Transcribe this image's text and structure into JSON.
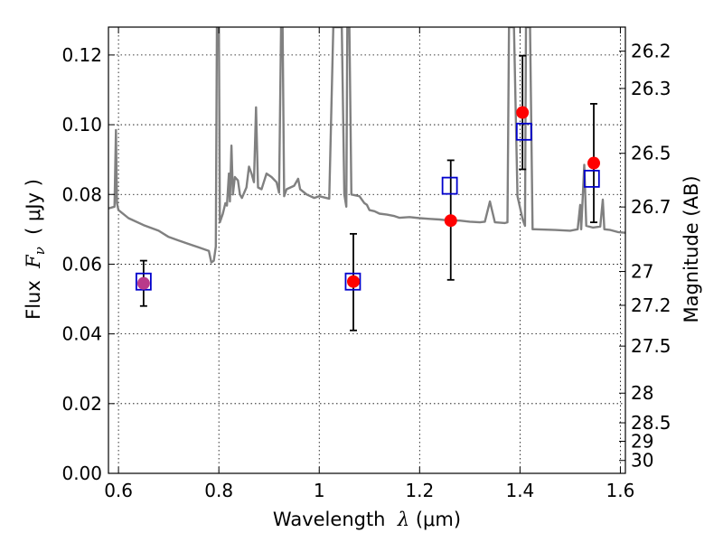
{
  "chart_data": {
    "type": "line",
    "xlabel": {
      "prefix": "Wavelength  ",
      "symbol": "λ",
      "units": " (μm)"
    },
    "ylabel": {
      "prefix": "Flux  ",
      "symbol": "F",
      "subscript": "ν",
      "units": "  ( μJy )"
    },
    "y2label": "Magnitude (AB)",
    "xlim": [
      0.58,
      1.61
    ],
    "ylim": [
      0.0,
      0.128
    ],
    "grid": true,
    "x_ticks": [
      0.6,
      0.8,
      1.0,
      1.2,
      1.4,
      1.6
    ],
    "x_tick_labels": [
      "0.6",
      "0.8",
      "1",
      "1.2",
      "1.4",
      "1.6"
    ],
    "y_ticks": [
      0.0,
      0.02,
      0.04,
      0.06,
      0.08,
      0.1,
      0.12
    ],
    "y_tick_labels": [
      "0.00",
      "0.02",
      "0.04",
      "0.06",
      "0.08",
      "0.10",
      "0.12"
    ],
    "magnitude_ticks": [
      {
        "label": "26.2",
        "flux": 0.1211
      },
      {
        "label": "26.3",
        "flux": 0.1104
      },
      {
        "label": "26.5",
        "flux": 0.0918
      },
      {
        "label": "26.7",
        "flux": 0.0764
      },
      {
        "label": "27",
        "flux": 0.0579
      },
      {
        "label": "27.2",
        "flux": 0.0482
      },
      {
        "label": "27.5",
        "flux": 0.0365
      },
      {
        "label": "28",
        "flux": 0.023
      },
      {
        "label": "28.5",
        "flux": 0.0145
      },
      {
        "label": "29",
        "flux": 0.0092
      },
      {
        "label": "30",
        "flux": 0.0037
      }
    ],
    "series": [
      {
        "type": "line",
        "color": "#808080",
        "points": [
          [
            0.58,
            0.076
          ],
          [
            0.592,
            0.0765
          ],
          [
            0.595,
            0.0985
          ],
          [
            0.597,
            0.0775
          ],
          [
            0.6,
            0.0755
          ],
          [
            0.62,
            0.0732
          ],
          [
            0.65,
            0.0712
          ],
          [
            0.68,
            0.0696
          ],
          [
            0.7,
            0.0678
          ],
          [
            0.72,
            0.0668
          ],
          [
            0.74,
            0.0658
          ],
          [
            0.76,
            0.0648
          ],
          [
            0.78,
            0.0638
          ],
          [
            0.785,
            0.0605
          ],
          [
            0.79,
            0.061
          ],
          [
            0.794,
            0.065
          ],
          [
            0.796,
            0.128
          ],
          [
            0.8,
            0.128
          ],
          [
            0.802,
            0.072
          ],
          [
            0.808,
            0.0745
          ],
          [
            0.813,
            0.0775
          ],
          [
            0.816,
            0.0768
          ],
          [
            0.82,
            0.086
          ],
          [
            0.822,
            0.078
          ],
          [
            0.825,
            0.094
          ],
          [
            0.828,
            0.08
          ],
          [
            0.832,
            0.085
          ],
          [
            0.838,
            0.084
          ],
          [
            0.842,
            0.08
          ],
          [
            0.846,
            0.079
          ],
          [
            0.855,
            0.082
          ],
          [
            0.86,
            0.088
          ],
          [
            0.865,
            0.086
          ],
          [
            0.87,
            0.0835
          ],
          [
            0.874,
            0.105
          ],
          [
            0.878,
            0.082
          ],
          [
            0.885,
            0.0815
          ],
          [
            0.895,
            0.086
          ],
          [
            0.905,
            0.085
          ],
          [
            0.915,
            0.0835
          ],
          [
            0.92,
            0.0805
          ],
          [
            0.924,
            0.128
          ],
          [
            0.927,
            0.128
          ],
          [
            0.93,
            0.0795
          ],
          [
            0.935,
            0.0815
          ],
          [
            0.95,
            0.0825
          ],
          [
            0.958,
            0.0845
          ],
          [
            0.962,
            0.0815
          ],
          [
            0.975,
            0.08
          ],
          [
            0.99,
            0.079
          ],
          [
            1.0,
            0.0795
          ],
          [
            1.02,
            0.0788
          ],
          [
            1.028,
            0.128
          ],
          [
            1.045,
            0.128
          ],
          [
            1.05,
            0.08
          ],
          [
            1.054,
            0.0765
          ],
          [
            1.056,
            0.128
          ],
          [
            1.06,
            0.128
          ],
          [
            1.064,
            0.08
          ],
          [
            1.08,
            0.0795
          ],
          [
            1.09,
            0.0775
          ],
          [
            1.095,
            0.077
          ],
          [
            1.1,
            0.0755
          ],
          [
            1.11,
            0.0752
          ],
          [
            1.12,
            0.0745
          ],
          [
            1.135,
            0.0742
          ],
          [
            1.15,
            0.0738
          ],
          [
            1.16,
            0.0733
          ],
          [
            1.18,
            0.0735
          ],
          [
            1.2,
            0.0732
          ],
          [
            1.22,
            0.073
          ],
          [
            1.24,
            0.0728
          ],
          [
            1.26,
            0.0725
          ],
          [
            1.28,
            0.0725
          ],
          [
            1.3,
            0.0722
          ],
          [
            1.32,
            0.072
          ],
          [
            1.33,
            0.0722
          ],
          [
            1.34,
            0.078
          ],
          [
            1.35,
            0.072
          ],
          [
            1.37,
            0.0718
          ],
          [
            1.375,
            0.072
          ],
          [
            1.378,
            0.128
          ],
          [
            1.388,
            0.128
          ],
          [
            1.395,
            0.0795
          ],
          [
            1.405,
            0.073
          ],
          [
            1.41,
            0.071
          ],
          [
            1.412,
            0.128
          ],
          [
            1.42,
            0.128
          ],
          [
            1.425,
            0.07
          ],
          [
            1.43,
            0.07
          ],
          [
            1.47,
            0.0698
          ],
          [
            1.5,
            0.0696
          ],
          [
            1.515,
            0.07
          ],
          [
            1.52,
            0.077
          ],
          [
            1.522,
            0.07
          ],
          [
            1.528,
            0.0885
          ],
          [
            1.532,
            0.071
          ],
          [
            1.545,
            0.0705
          ],
          [
            1.56,
            0.0708
          ],
          [
            1.565,
            0.0785
          ],
          [
            1.568,
            0.07
          ],
          [
            1.58,
            0.0698
          ],
          [
            1.595,
            0.0692
          ],
          [
            1.61,
            0.069
          ]
        ]
      },
      {
        "type": "scatter",
        "marker": "square",
        "color": "#0000cc",
        "points": [
          [
            0.65,
            0.055
          ],
          [
            1.067,
            0.055
          ],
          [
            1.26,
            0.0825
          ],
          [
            1.408,
            0.098
          ],
          [
            1.543,
            0.0845
          ]
        ]
      },
      {
        "type": "scatter",
        "marker": "circle",
        "color": "#ff0000",
        "points": [
          [
            0.65,
            0.0545
          ],
          [
            1.068,
            0.055
          ],
          [
            1.262,
            0.0725
          ],
          [
            1.405,
            0.1035
          ],
          [
            1.547,
            0.089
          ]
        ],
        "errors": [
          [
            0.048,
            0.061
          ],
          [
            0.041,
            0.0687
          ],
          [
            0.0555,
            0.0898
          ],
          [
            0.0872,
            0.1198
          ],
          [
            0.072,
            0.106
          ]
        ]
      }
    ]
  }
}
